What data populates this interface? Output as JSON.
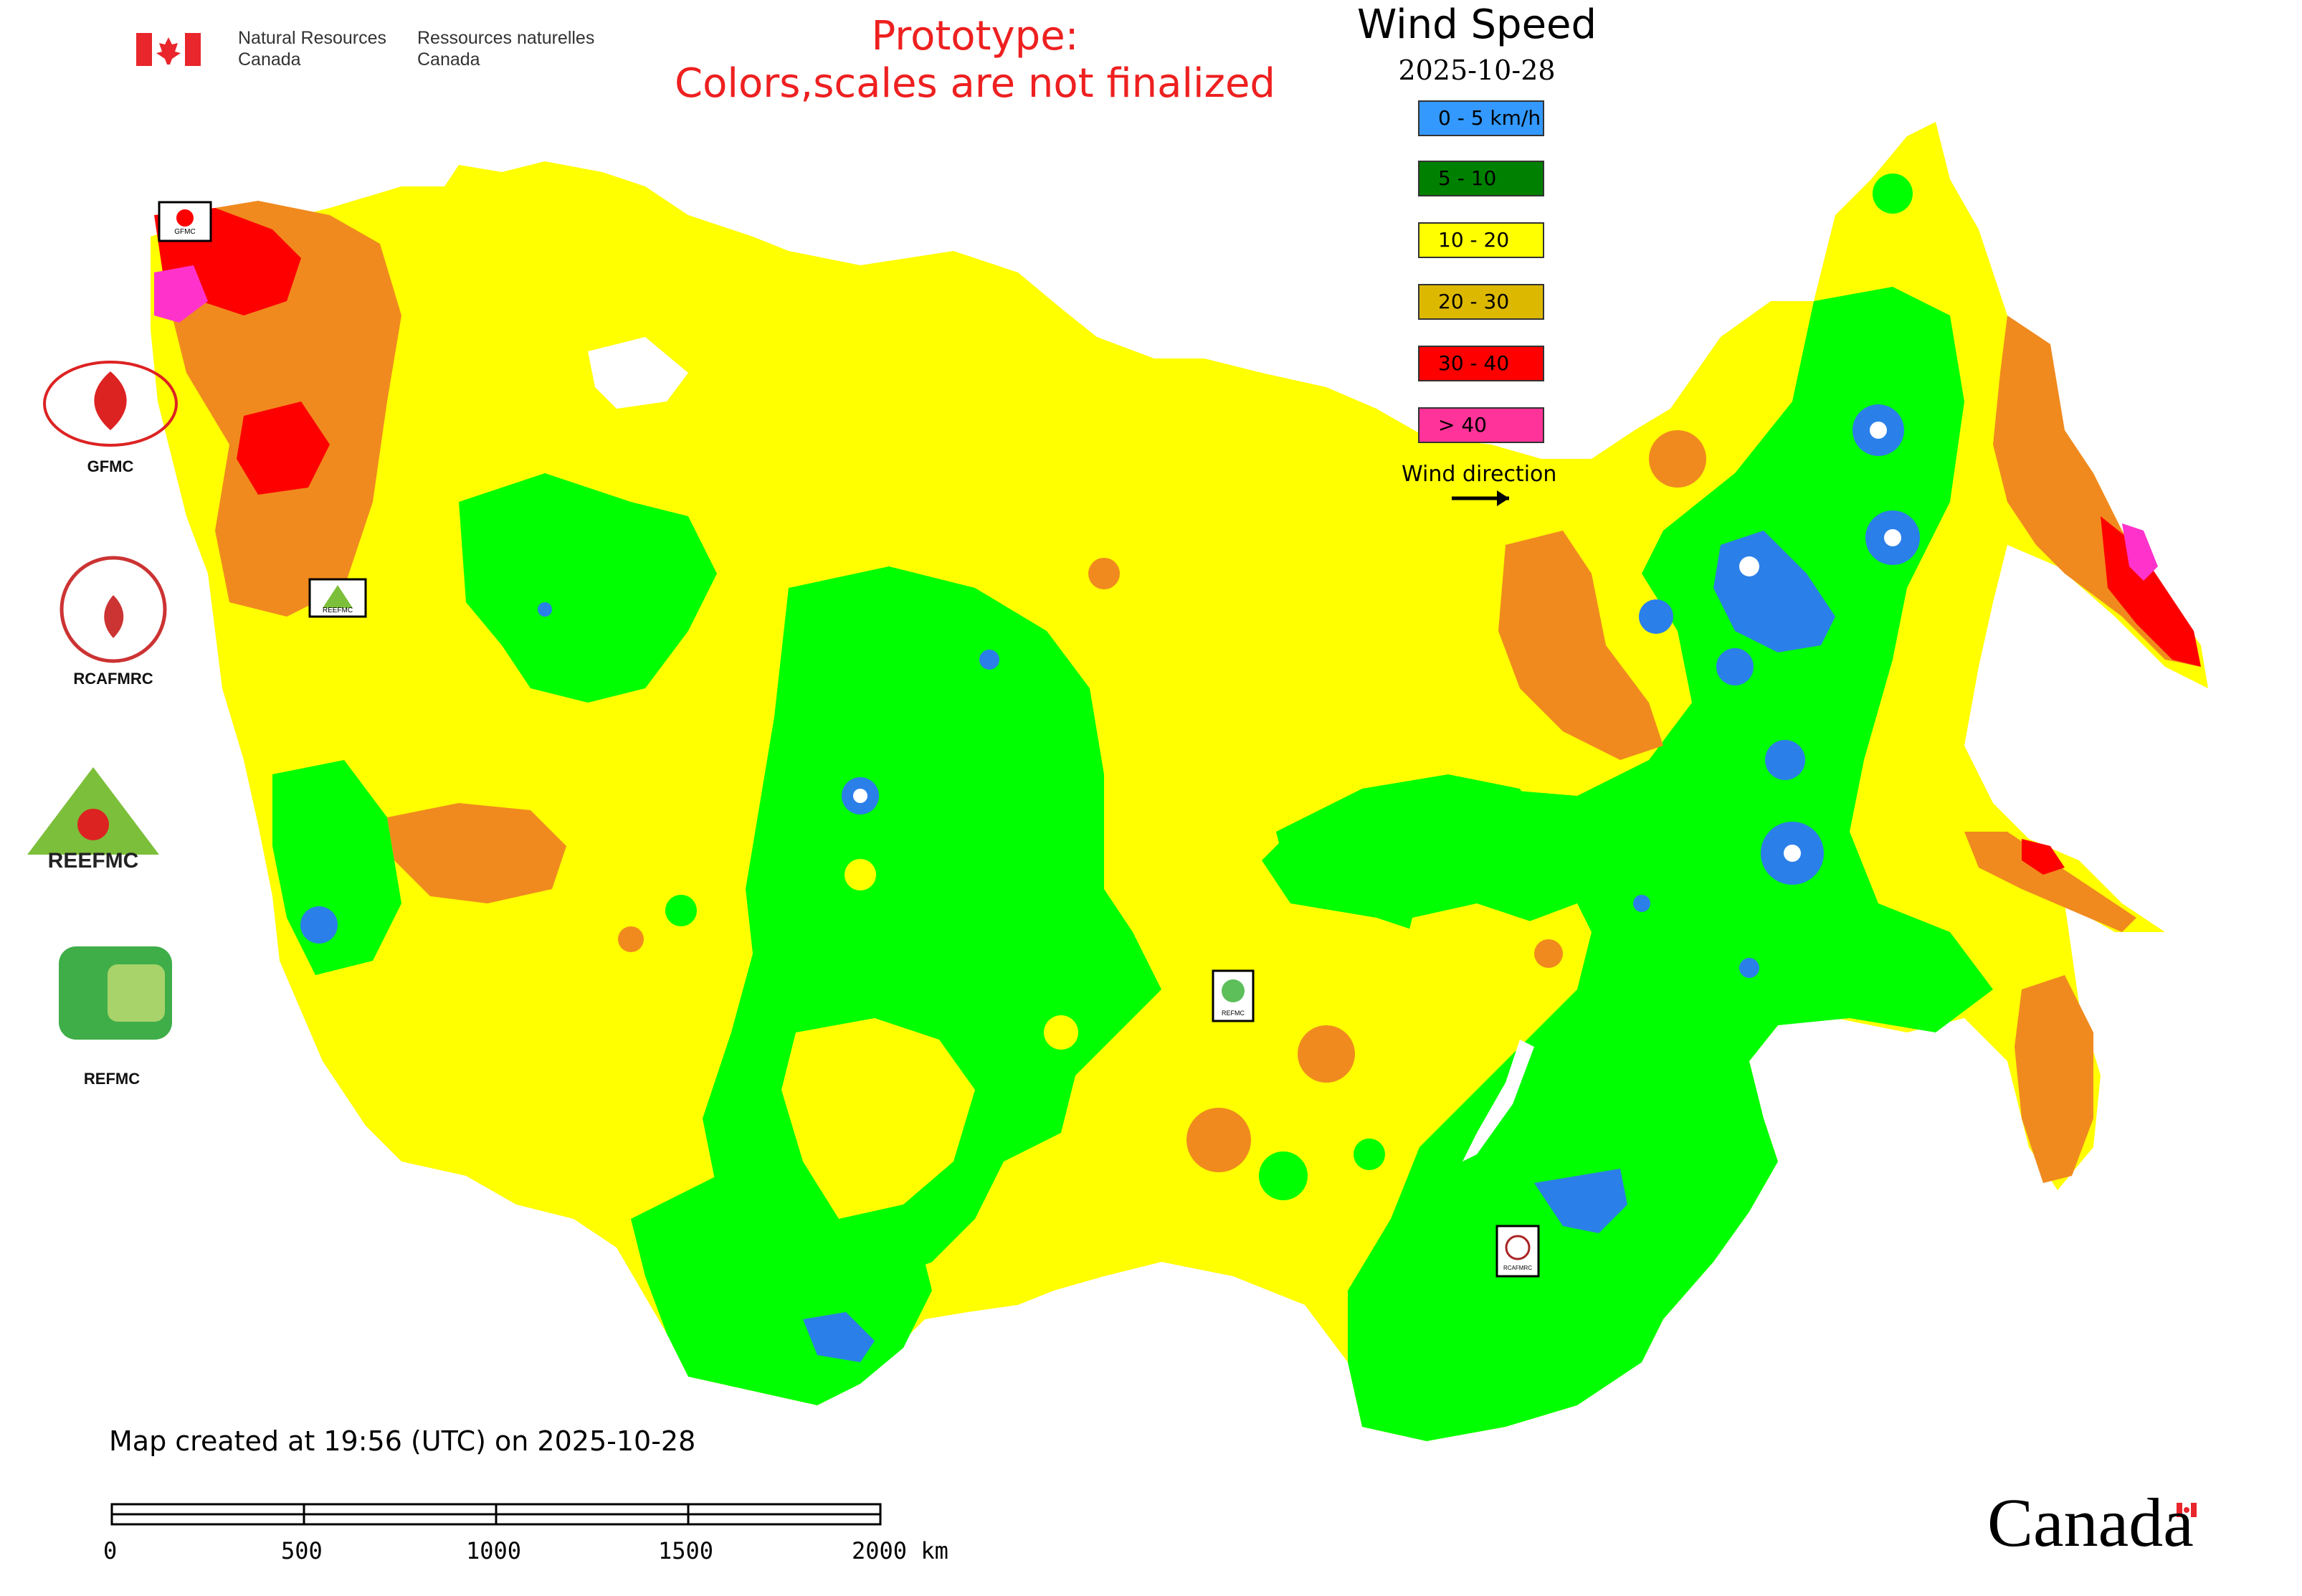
{
  "header": {
    "org_en_1": "Natural Resources",
    "org_en_2": "Canada",
    "org_fr_1": "Ressources naturelles",
    "org_fr_2": "Canada",
    "prototype_1": "Prototype:",
    "prototype_2": "Colors,scales are not finalized"
  },
  "legend": {
    "title": "Wind Speed",
    "date": "2025-10-28",
    "items": [
      {
        "label": "0 - 5 km/h",
        "color": "#3399ff"
      },
      {
        "label": "5 - 10",
        "color": "#008000"
      },
      {
        "label": "10 - 20",
        "color": "#ffff00"
      },
      {
        "label": "20 - 30",
        "color": "#ddb800"
      },
      {
        "label": "30 - 40",
        "color": "#ff0000"
      },
      {
        "label": "> 40",
        "color": "#ff3399"
      }
    ],
    "wind_direction": "Wind direction"
  },
  "logos": [
    {
      "label": "GFMC",
      "icon": "gfmc-logo-icon"
    },
    {
      "label": "RCAFMRC",
      "icon": "rcafmrc-logo-icon"
    },
    {
      "label": "REEFMC",
      "icon": "reefmc-logo-icon"
    },
    {
      "label": "REFMC",
      "icon": "refmc-logo-icon"
    }
  ],
  "map_markers": [
    "GFMC",
    "REEFMC",
    "REFMC",
    "RCAFMRC"
  ],
  "footer": {
    "created": "Map created at 19:56 (UTC) on 2025-10-28",
    "scale_labels": [
      "0",
      "500",
      "1000",
      "1500",
      "2000 km"
    ],
    "wordmark": "Canada"
  },
  "colors": {
    "land_yellow": "#ffff00",
    "green": "#00ff00",
    "blue": "#2b7fe8",
    "orange": "#f08a1e",
    "red": "#ff0000",
    "magenta": "#ff33cc"
  }
}
